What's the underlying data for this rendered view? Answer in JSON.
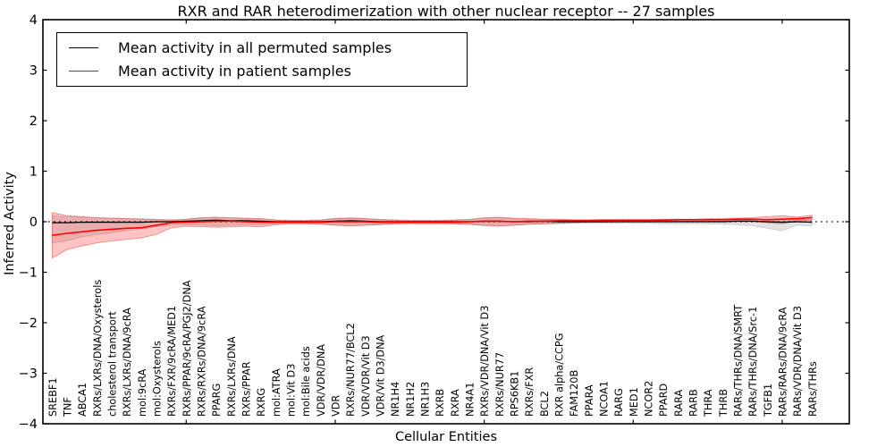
{
  "chart_data": {
    "type": "line",
    "title": "RXR and RAR heterodimerization with other nuclear receptor -- 27 samples",
    "xlabel": "Cellular Entities",
    "ylabel": "Inferred Activity",
    "ylim": [
      -4,
      4
    ],
    "ytick_labels": [
      "4",
      "3",
      "2",
      "1",
      "0",
      "−1",
      "−2",
      "−3",
      "−4"
    ],
    "ytick_values": [
      4,
      3,
      2,
      1,
      0,
      -1,
      -2,
      -3,
      -4
    ],
    "xticks_sample_positions": [
      10,
      20,
      30,
      40,
      50
    ],
    "grid": "off",
    "legend_position": "upper left",
    "zero_line": {
      "value": 0,
      "style": "dotted",
      "color": "#000000"
    },
    "legend": [
      {
        "label": "Mean activity in all permuted samples",
        "color": "#000000"
      },
      {
        "label": "Mean activity in patient samples",
        "color": "#ff0000"
      }
    ],
    "categories": [
      "SREBF1",
      "TNF",
      "ABCA1",
      "RXRs/LXRs/DNA/Oxysterols",
      "cholesterol transport",
      "RXRs/LXRs/DNA/9cRA",
      "mol:9cRA",
      "mol:Oxysterols",
      "RXRs/FXR/9cRA/MED1",
      "RXRs/PPAR/9cRA/PGJ2/DNA",
      "RXRs/RXRs/DNA/9cRA",
      "PPARG",
      "RXRs/LXRs/DNA",
      "RXRs/PPAR",
      "RXRG",
      "mol:ATRA",
      "mol:Vit D3",
      "mol:Bile acids",
      "VDR/VDR/DNA",
      "VDR",
      "RXRs/NUR77/BCL2",
      "VDR/VDR/Vit D3",
      "VDR/Vit D3/DNA",
      "NR1H4",
      "NR1H2",
      "NR1H3",
      "RXRB",
      "RXRA",
      "NR4A1",
      "RXRs/VDR/DNA/Vit D3",
      "RXRs/NUR77",
      "RPS6KB1",
      "RXRs/FXR",
      "BCL2",
      "RXR alpha/CCPG",
      "FAM120B",
      "PPARA",
      "NCOA1",
      "RARG",
      "MED1",
      "NCOR2",
      "PPARD",
      "RARA",
      "RARB",
      "THRA",
      "THRB",
      "RARs/THRs/DNA/SMRT",
      "RARs/THRs/DNA/Src-1",
      "TGFB1",
      "RARs/RARs/DNA/9cRA",
      "RARs/VDR/DNA/Vit D3",
      "RARs/THRs"
    ],
    "series": [
      {
        "name": "Mean activity in all permuted samples",
        "color": "#000000",
        "line_width": 1.3,
        "band_fill": "rgba(125,125,125,0.22)",
        "band_edge": "rgba(140,140,140,0.35)",
        "values": [
          -0.02,
          -0.02,
          -0.01,
          -0.01,
          -0.01,
          -0.01,
          -0.01,
          0,
          0,
          0.01,
          0.02,
          0.03,
          0.02,
          0.02,
          0.01,
          0,
          0,
          0,
          0,
          0.01,
          0.02,
          0.01,
          0,
          0,
          0,
          0,
          0,
          0,
          0,
          0.01,
          0.01,
          0,
          0,
          0.01,
          0,
          0,
          0,
          0,
          0,
          0,
          0,
          0,
          0,
          0,
          0,
          0,
          0.01,
          0.01,
          0,
          -0.01,
          0,
          -0.01
        ],
        "band_upper": [
          0.12,
          0.1,
          0.09,
          0.08,
          0.07,
          0.06,
          0.06,
          0.05,
          0.04,
          0.05,
          0.07,
          0.08,
          0.07,
          0.06,
          0.06,
          0.04,
          0.03,
          0.03,
          0.04,
          0.07,
          0.08,
          0.07,
          0.05,
          0.04,
          0.03,
          0.03,
          0.03,
          0.04,
          0.05,
          0.07,
          0.08,
          0.06,
          0.05,
          0.04,
          0.04,
          0.03,
          0.03,
          0.03,
          0.03,
          0.03,
          0.03,
          0.03,
          0.03,
          0.03,
          0.03,
          0.03,
          0.04,
          0.04,
          0.05,
          0.06,
          0.04,
          0.05
        ],
        "band_lower": [
          -0.42,
          -0.38,
          -0.3,
          -0.25,
          -0.22,
          -0.18,
          -0.14,
          -0.1,
          -0.06,
          -0.06,
          -0.07,
          -0.08,
          -0.07,
          -0.06,
          -0.06,
          -0.04,
          -0.03,
          -0.03,
          -0.04,
          -0.07,
          -0.08,
          -0.07,
          -0.05,
          -0.04,
          -0.03,
          -0.03,
          -0.03,
          -0.04,
          -0.05,
          -0.08,
          -0.09,
          -0.07,
          -0.05,
          -0.04,
          -0.04,
          -0.03,
          -0.03,
          -0.03,
          -0.03,
          -0.03,
          -0.03,
          -0.04,
          -0.04,
          -0.04,
          -0.04,
          -0.05,
          -0.06,
          -0.08,
          -0.13,
          -0.18,
          -0.07,
          -0.08
        ]
      },
      {
        "name": "Mean activity in patient samples",
        "color": "#ff0000",
        "line_width": 1.6,
        "band_fill": "rgba(255,40,40,0.28)",
        "band_edge": "rgba(225,70,70,0.55)",
        "values": [
          -0.27,
          -0.23,
          -0.2,
          -0.17,
          -0.15,
          -0.13,
          -0.12,
          -0.07,
          -0.02,
          -0.01,
          0,
          0.01,
          0.01,
          0,
          -0.01,
          -0.01,
          -0.01,
          -0.01,
          -0.01,
          0,
          0,
          0,
          -0.01,
          -0.01,
          -0.01,
          -0.01,
          -0.01,
          -0.01,
          0,
          0.01,
          0.01,
          0,
          0.01,
          0.01,
          0.02,
          0.02,
          0.02,
          0.03,
          0.03,
          0.03,
          0.03,
          0.03,
          0.04,
          0.04,
          0.04,
          0.04,
          0.05,
          0.05,
          0.04,
          0.05,
          0.06,
          0.08
        ],
        "band_upper": [
          0.18,
          0.12,
          0.1,
          0.08,
          0.07,
          0.06,
          0.05,
          0.04,
          0.03,
          0.05,
          0.08,
          0.09,
          0.08,
          0.07,
          0.06,
          0.03,
          0.02,
          0.02,
          0.03,
          0.06,
          0.07,
          0.06,
          0.04,
          0.03,
          0.02,
          0.02,
          0.02,
          0.03,
          0.04,
          0.08,
          0.09,
          0.07,
          0.06,
          0.05,
          0.05,
          0.04,
          0.04,
          0.04,
          0.04,
          0.04,
          0.04,
          0.05,
          0.05,
          0.05,
          0.06,
          0.06,
          0.07,
          0.08,
          0.1,
          0.12,
          0.09,
          0.13
        ],
        "band_lower": [
          -0.72,
          -0.55,
          -0.48,
          -0.42,
          -0.38,
          -0.35,
          -0.32,
          -0.25,
          -0.12,
          -0.09,
          -0.1,
          -0.11,
          -0.1,
          -0.09,
          -0.1,
          -0.06,
          -0.04,
          -0.04,
          -0.05,
          -0.07,
          -0.08,
          -0.07,
          -0.06,
          -0.04,
          -0.04,
          -0.04,
          -0.04,
          -0.04,
          -0.05,
          -0.07,
          -0.08,
          -0.07,
          -0.05,
          -0.04,
          -0.03,
          -0.02,
          -0.01,
          -0.01,
          0,
          0,
          0,
          0,
          0.01,
          0.01,
          0.01,
          0.01,
          0.02,
          0.01,
          -0.02,
          -0.04,
          0.02,
          0.03
        ]
      }
    ]
  }
}
